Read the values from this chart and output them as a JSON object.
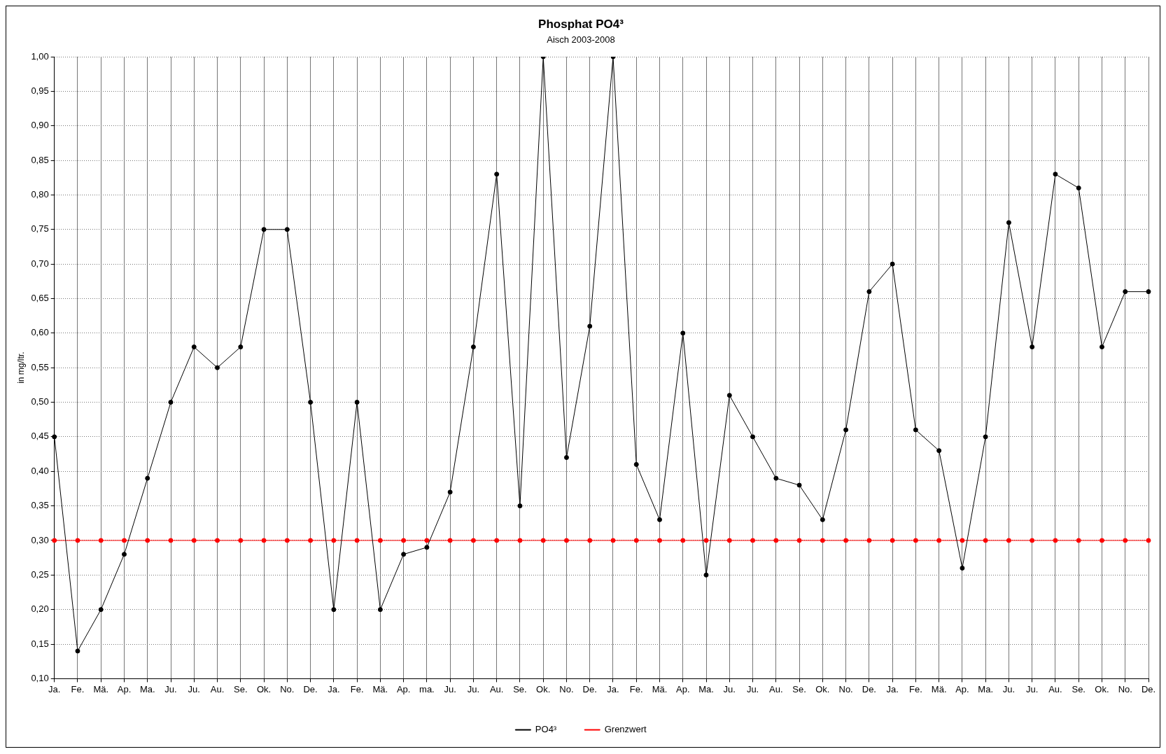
{
  "chart_data": {
    "type": "line",
    "title": "Phosphat PO4³",
    "subtitle": "Aisch 2003-2008",
    "ylabel": "in mg/ltr.",
    "categories": [
      "Ja.",
      "Fe.",
      "Mä.",
      "Ap.",
      "Ma.",
      "Ju.",
      "Ju.",
      "Au.",
      "Se.",
      "Ok.",
      "No.",
      "De.",
      "Ja.",
      "Fe.",
      "Mä.",
      "Ap.",
      "ma.",
      "Ju.",
      "Ju.",
      "Au.",
      "Se.",
      "Ok.",
      "No.",
      "De.",
      "Ja.",
      "Fe.",
      "Mä.",
      "Ap.",
      "Ma.",
      "Ju.",
      "Ju.",
      "Au.",
      "Se.",
      "Ok.",
      "No.",
      "De.",
      "Ja.",
      "Fe.",
      "Mä.",
      "Ap.",
      "Ma.",
      "Ju.",
      "Ju.",
      "Au.",
      "Se.",
      "Ok.",
      "No.",
      "De."
    ],
    "series": [
      {
        "name": "PO4³",
        "color": "#000000",
        "values": [
          0.45,
          0.14,
          0.2,
          0.28,
          0.39,
          0.5,
          0.58,
          0.55,
          0.58,
          0.75,
          0.75,
          0.5,
          0.2,
          0.5,
          0.2,
          0.28,
          0.29,
          0.37,
          0.58,
          0.83,
          0.35,
          1.0,
          0.42,
          0.61,
          1.0,
          0.41,
          0.33,
          0.6,
          0.25,
          0.51,
          0.45,
          0.39,
          0.38,
          0.33,
          0.46,
          0.66,
          0.7,
          0.46,
          0.43,
          0.26,
          0.45,
          0.76,
          0.58,
          0.83,
          0.81,
          0.58,
          0.66,
          0.66
        ]
      },
      {
        "name": "Grenzwert",
        "color": "#ff0000",
        "values": [
          0.3,
          0.3,
          0.3,
          0.3,
          0.3,
          0.3,
          0.3,
          0.3,
          0.3,
          0.3,
          0.3,
          0.3,
          0.3,
          0.3,
          0.3,
          0.3,
          0.3,
          0.3,
          0.3,
          0.3,
          0.3,
          0.3,
          0.3,
          0.3,
          0.3,
          0.3,
          0.3,
          0.3,
          0.3,
          0.3,
          0.3,
          0.3,
          0.3,
          0.3,
          0.3,
          0.3,
          0.3,
          0.3,
          0.3,
          0.3,
          0.3,
          0.3,
          0.3,
          0.3,
          0.3,
          0.3,
          0.3,
          0.3
        ]
      }
    ],
    "ylim": [
      0.1,
      1.0
    ],
    "yticks": [
      {
        "value": 0.1,
        "label": "0,10"
      },
      {
        "value": 0.15,
        "label": "0,15"
      },
      {
        "value": 0.2,
        "label": "0,20"
      },
      {
        "value": 0.25,
        "label": "0,25"
      },
      {
        "value": 0.3,
        "label": "0,30"
      },
      {
        "value": 0.35,
        "label": "0,35"
      },
      {
        "value": 0.4,
        "label": "0,40"
      },
      {
        "value": 0.45,
        "label": "0,45"
      },
      {
        "value": 0.5,
        "label": "0,50"
      },
      {
        "value": 0.55,
        "label": "0,55"
      },
      {
        "value": 0.6,
        "label": "0,60"
      },
      {
        "value": 0.65,
        "label": "0,65"
      },
      {
        "value": 0.7,
        "label": "0,70"
      },
      {
        "value": 0.75,
        "label": "0,75"
      },
      {
        "value": 0.8,
        "label": "0,80"
      },
      {
        "value": 0.85,
        "label": "0,85"
      },
      {
        "value": 0.9,
        "label": "0,90"
      },
      {
        "value": 0.95,
        "label": "0,95"
      },
      {
        "value": 1.0,
        "label": "1,00"
      }
    ],
    "grid": true,
    "legend": "bottom",
    "marker": "circle",
    "line_style": "solid"
  }
}
